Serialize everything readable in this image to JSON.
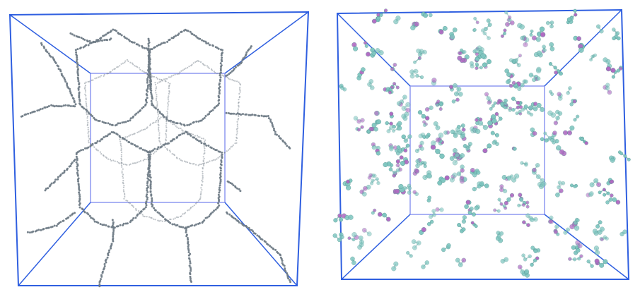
{
  "panels": [
    {
      "name": "polymer-network-view",
      "description_hidden": true,
      "colors": {
        "box": "#2f5fe0",
        "inner_box": "#8d98f0",
        "strand": "#6f7b86"
      }
    },
    {
      "name": "molecular-solution-view",
      "description_hidden": true,
      "colors": {
        "box": "#2f5fe0",
        "inner_box": "#8d98f0",
        "atom_a": "#7fc6c0",
        "atom_b": "#b06ac2",
        "bond": "#6aa7a5"
      }
    }
  ]
}
